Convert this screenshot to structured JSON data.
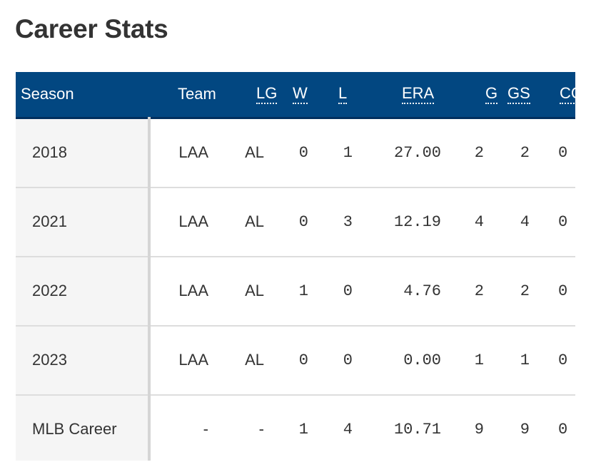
{
  "title": "Career Stats",
  "columns": [
    "Season",
    "Team",
    "LG",
    "W",
    "L",
    "ERA",
    "G",
    "GS",
    "CG"
  ],
  "rows": [
    {
      "season": "2018",
      "team": "LAA",
      "lg": "AL",
      "w": "0",
      "l": "1",
      "era": "27.00",
      "g": "2",
      "gs": "2",
      "cg": "0"
    },
    {
      "season": "2021",
      "team": "LAA",
      "lg": "AL",
      "w": "0",
      "l": "3",
      "era": "12.19",
      "g": "4",
      "gs": "4",
      "cg": "0"
    },
    {
      "season": "2022",
      "team": "LAA",
      "lg": "AL",
      "w": "1",
      "l": "0",
      "era": "4.76",
      "g": "2",
      "gs": "2",
      "cg": "0"
    },
    {
      "season": "2023",
      "team": "LAA",
      "lg": "AL",
      "w": "0",
      "l": "0",
      "era": "0.00",
      "g": "1",
      "gs": "1",
      "cg": "0"
    },
    {
      "season": "MLB Career",
      "team": "-",
      "lg": "-",
      "w": "1",
      "l": "4",
      "era": "10.71",
      "g": "9",
      "gs": "9",
      "cg": "0"
    }
  ]
}
